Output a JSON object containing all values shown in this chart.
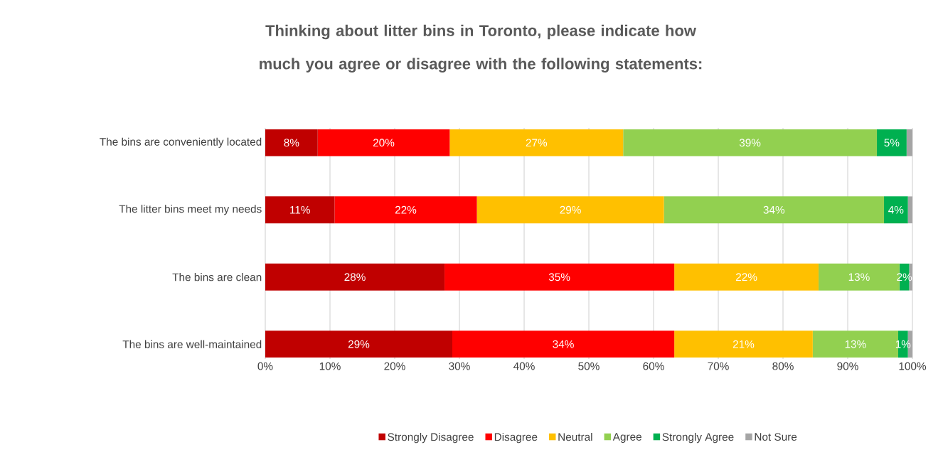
{
  "chart_data": {
    "type": "bar",
    "orientation": "horizontal",
    "stacked": true,
    "title": "Thinking about  litter bins in Toronto, please indicate how much you agree or disagree with the following statements:",
    "categories": [
      "The bins are conveniently located",
      "The litter bins meet my needs",
      "The bins are clean",
      "The bins are well-maintained"
    ],
    "series": [
      {
        "name": "Strongly Disagree",
        "color": "#c00000",
        "values": [
          8.1,
          10.7,
          27.7,
          28.9
        ],
        "value_labels": [
          "8%",
          "11%",
          "28%",
          "29%"
        ]
      },
      {
        "name": "Disagree",
        "color": "#ff0000",
        "values": [
          20.4,
          22.0,
          35.5,
          34.3
        ],
        "value_labels": [
          "20%",
          "22%",
          "35%",
          "34%"
        ]
      },
      {
        "name": "Neutral",
        "color": "#ffc000",
        "values": [
          26.8,
          28.9,
          22.3,
          21.4
        ],
        "value_labels": [
          "27%",
          "29%",
          "22%",
          "21%"
        ]
      },
      {
        "name": "Agree",
        "color": "#92d050",
        "values": [
          39.2,
          34.0,
          12.5,
          13.2
        ],
        "value_labels": [
          "39%",
          "34%",
          "13%",
          "13%"
        ]
      },
      {
        "name": "Strongly Agree",
        "color": "#00b050",
        "values": [
          4.6,
          3.7,
          1.5,
          1.5
        ],
        "value_labels": [
          "5%",
          "4%",
          "2%",
          "1%"
        ]
      },
      {
        "name": "Not Sure",
        "color": "#a5a5a5",
        "values": [
          0.9,
          0.7,
          0.5,
          0.7
        ],
        "value_labels": [
          null,
          null,
          null,
          null
        ]
      }
    ],
    "xlim": [
      0,
      100
    ],
    "xticks": [
      {
        "value": 0,
        "label": "0%"
      },
      {
        "value": 10,
        "label": "10%"
      },
      {
        "value": 20,
        "label": "20%"
      },
      {
        "value": 30,
        "label": "30%"
      },
      {
        "value": 40,
        "label": "40%"
      },
      {
        "value": 50,
        "label": "50%"
      },
      {
        "value": 60,
        "label": "60%"
      },
      {
        "value": 70,
        "label": "70%"
      },
      {
        "value": 80,
        "label": "80%"
      },
      {
        "value": 90,
        "label": "90%"
      },
      {
        "value": 100,
        "label": "100%"
      }
    ],
    "grid": "x",
    "legend": "bottom"
  }
}
